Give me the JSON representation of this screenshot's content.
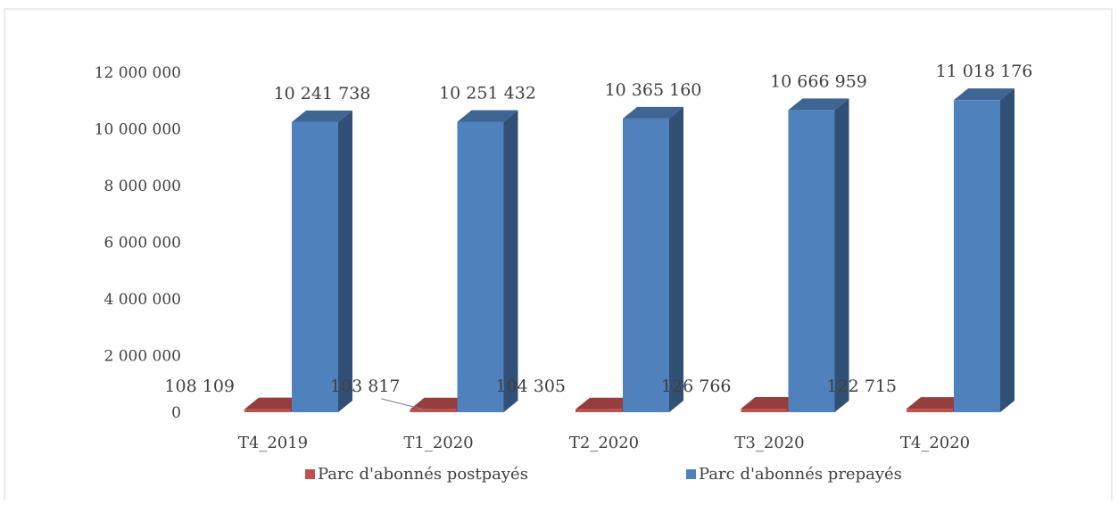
{
  "chart_data": {
    "type": "bar",
    "categories": [
      "T4_2019",
      "T1_2020",
      "T2_2020",
      "T3_2020",
      "T4_2020"
    ],
    "series": [
      {
        "name": "Parc d'abonnés postpayés",
        "values": [
          108109,
          103817,
          104305,
          126766,
          122715
        ],
        "labels": [
          "108 109",
          "103 817",
          "104 305",
          "126 766",
          "122 715"
        ],
        "color": "#C0504D"
      },
      {
        "name": "Parc d'abonnés prepayés",
        "values": [
          10241738,
          10251432,
          10365160,
          10666959,
          11018176
        ],
        "labels": [
          "10 241 738",
          "10 251 432",
          "10 365 160",
          "10 666 959",
          "11 018 176"
        ],
        "color": "#4F81BD"
      }
    ],
    "ylim": [
      0,
      12000000
    ],
    "yticks": [
      0,
      2000000,
      4000000,
      6000000,
      8000000,
      10000000,
      12000000
    ],
    "ytick_labels": [
      "0",
      "2 000 000",
      "4 000 000",
      "6 000 000",
      "8 000 000",
      "10 000 000",
      "12 000 000"
    ],
    "grid": false,
    "legend_position": "bottom",
    "style": "3d-column"
  }
}
